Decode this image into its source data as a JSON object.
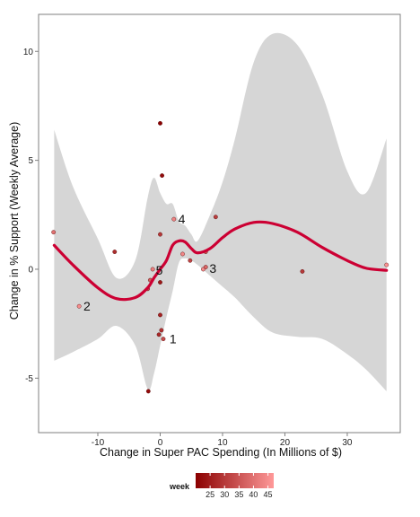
{
  "chart_data": {
    "type": "scatter",
    "xlabel": "Change in Super PAC Spending (In Millions of $)",
    "ylabel": "Change in % Support (Weekly Average)",
    "xlim": [
      -19.5,
      38.5
    ],
    "ylim": [
      -7.5,
      11.7
    ],
    "x_ticks": [
      -10,
      0,
      10,
      20,
      30
    ],
    "y_ticks": [
      -5,
      0,
      5,
      10
    ],
    "grid": "off",
    "points": [
      {
        "x": -17.1,
        "y": 1.7,
        "week": 40
      },
      {
        "x": -7.3,
        "y": 0.8,
        "week": 28
      },
      {
        "x": -13.0,
        "y": -1.7,
        "week": 45
      },
      {
        "x": -1.9,
        "y": -5.6,
        "week": 22
      },
      {
        "x": 0.0,
        "y": 6.7,
        "week": 20
      },
      {
        "x": 0.3,
        "y": 4.3,
        "week": 22
      },
      {
        "x": 0.0,
        "y": 1.6,
        "week": 30
      },
      {
        "x": 0.0,
        "y": -0.6,
        "week": 24
      },
      {
        "x": -1.2,
        "y": 0.0,
        "week": 42
      },
      {
        "x": -1.6,
        "y": -0.5,
        "week": 36
      },
      {
        "x": -2.0,
        "y": -0.9,
        "week": 33
      },
      {
        "x": 0.0,
        "y": -2.1,
        "week": 26
      },
      {
        "x": -0.2,
        "y": -3.0,
        "week": 27
      },
      {
        "x": 0.2,
        "y": -2.8,
        "week": 29
      },
      {
        "x": 0.5,
        "y": -3.2,
        "week": 34
      },
      {
        "x": 2.2,
        "y": 2.3,
        "week": 43
      },
      {
        "x": 3.6,
        "y": 0.7,
        "week": 44
      },
      {
        "x": 4.8,
        "y": 0.4,
        "week": 32
      },
      {
        "x": 6.9,
        "y": 0.0,
        "week": 45
      },
      {
        "x": 7.3,
        "y": 0.1,
        "week": 38
      },
      {
        "x": 7.3,
        "y": 0.8,
        "week": 35
      },
      {
        "x": 8.9,
        "y": 2.4,
        "week": 31
      },
      {
        "x": 22.8,
        "y": -0.1,
        "week": 30
      },
      {
        "x": 36.3,
        "y": 0.2,
        "week": 46
      }
    ],
    "smooth": {
      "name": "loess",
      "color": "#CC0033",
      "x": [
        -17.0,
        -14.0,
        -10.0,
        -7.0,
        -4.0,
        -2.0,
        -1.0,
        0.0,
        1.0,
        2.0,
        3.0,
        4.0,
        5.0,
        6.0,
        8.0,
        10.0,
        12.0,
        15.0,
        18.0,
        22.0,
        26.0,
        30.0,
        33.0,
        36.3
      ],
      "y": [
        1.1,
        0.2,
        -0.85,
        -1.35,
        -1.3,
        -0.85,
        -0.4,
        0.0,
        0.4,
        1.1,
        1.3,
        1.25,
        0.95,
        0.75,
        0.95,
        1.45,
        1.85,
        2.15,
        2.1,
        1.7,
        1.0,
        0.4,
        0.05,
        -0.05
      ],
      "ci_lower": [
        -4.2,
        -3.8,
        -3.2,
        -2.6,
        -3.5,
        -5.5,
        -4.8,
        -3.5,
        -2.2,
        -1.0,
        0.3,
        0.5,
        0.4,
        0.2,
        -0.3,
        -0.8,
        -1.3,
        -2.2,
        -2.9,
        -3.1,
        -3.2,
        -3.9,
        -4.6,
        -5.6
      ],
      "ci_upper": [
        6.4,
        3.8,
        1.4,
        -0.4,
        0.4,
        3.3,
        4.2,
        3.5,
        3.0,
        3.0,
        2.2,
        2.0,
        1.6,
        1.3,
        2.5,
        4.0,
        6.0,
        9.5,
        10.8,
        10.3,
        8.0,
        4.5,
        3.5,
        6.0
      ]
    },
    "annotations": [
      {
        "text": "1",
        "x": 1.5,
        "y": -3.2
      },
      {
        "text": "2",
        "x": -12.3,
        "y": -1.7
      },
      {
        "text": "3",
        "x": 7.9,
        "y": 0.05
      },
      {
        "text": "4",
        "x": 2.9,
        "y": 2.3
      },
      {
        "text": "5",
        "x": -0.7,
        "y": -0.05
      }
    ],
    "legend": {
      "title": "week",
      "position": "bottom",
      "min": 20,
      "max": 47,
      "ticks": [
        25,
        30,
        35,
        40,
        45
      ],
      "color_low": "#8B0000",
      "color_high": "#FF9999"
    }
  }
}
